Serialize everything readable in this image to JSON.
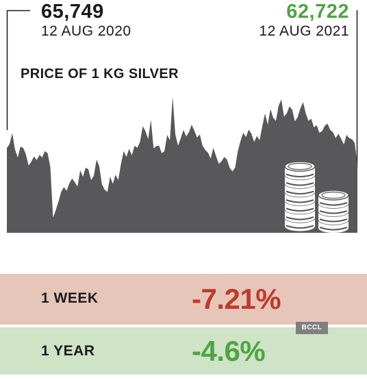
{
  "chart_data": {
    "type": "area",
    "title": "PRICE OF 1 KG SILVER",
    "xlabel": "",
    "ylabel": "",
    "start": {
      "value": "65,749",
      "date": "12 AUG 2020"
    },
    "end": {
      "value": "62,722",
      "date": "12 AUG 2021"
    },
    "ylim": [
      50000,
      78000
    ],
    "grid": false,
    "series": [
      {
        "values": [
          65749,
          66500,
          68500,
          65500,
          64000,
          66000,
          65800,
          64600,
          62500,
          63200,
          64200,
          63500,
          64500,
          64000,
          65200,
          64800,
          62200,
          52800,
          54200,
          55800,
          57600,
          58500,
          57800,
          59200,
          60100,
          59400,
          58600,
          61600,
          60400,
          62100,
          61800,
          59800,
          60600,
          63600,
          62400,
          59000,
          58000,
          57600,
          60400,
          59100,
          60800,
          59800,
          62800,
          65200,
          64100,
          65600,
          64400,
          66200,
          65800,
          66900,
          69800,
          68900,
          67400,
          71000,
          65700,
          66100,
          66200,
          64800,
          65200,
          68200,
          67200,
          75300,
          68300,
          66200,
          67600,
          69100,
          67900,
          68700,
          70100,
          69000,
          67700,
          68300,
          66200,
          65400,
          64900,
          63800,
          65800,
          64200,
          62800,
          63300,
          64100,
          63600,
          62100,
          61400,
          62100,
          65200,
          67100,
          68600,
          67800,
          69200,
          68400,
          66900,
          68000,
          67200,
          69800,
          72200,
          70100,
          73000,
          71400,
          70800,
          73600,
          74800,
          71600,
          72200,
          73500,
          72900,
          70700,
          71500,
          73100,
          74300,
          72200,
          70800,
          71200,
          69600,
          70000,
          68600,
          68900,
          69900,
          70300,
          69100,
          68700,
          67600,
          68400,
          67500,
          66400,
          68200,
          67600,
          67400,
          66700,
          62722
        ]
      }
    ]
  },
  "rows": {
    "week": {
      "label": "1 WEEK",
      "value": "-7.21%",
      "bg": "#e6c6b9",
      "color": "#c0392b"
    },
    "year": {
      "label": "1 YEAR",
      "value": "-4.6%",
      "bg": "#cfe3c6",
      "color": "#4ea541"
    }
  },
  "credit": "BCCL",
  "icons": [
    "coin-stack-icon"
  ],
  "colors": {
    "area_fill": "#58585a",
    "up": "#4ea541",
    "down": "#c0392b"
  }
}
